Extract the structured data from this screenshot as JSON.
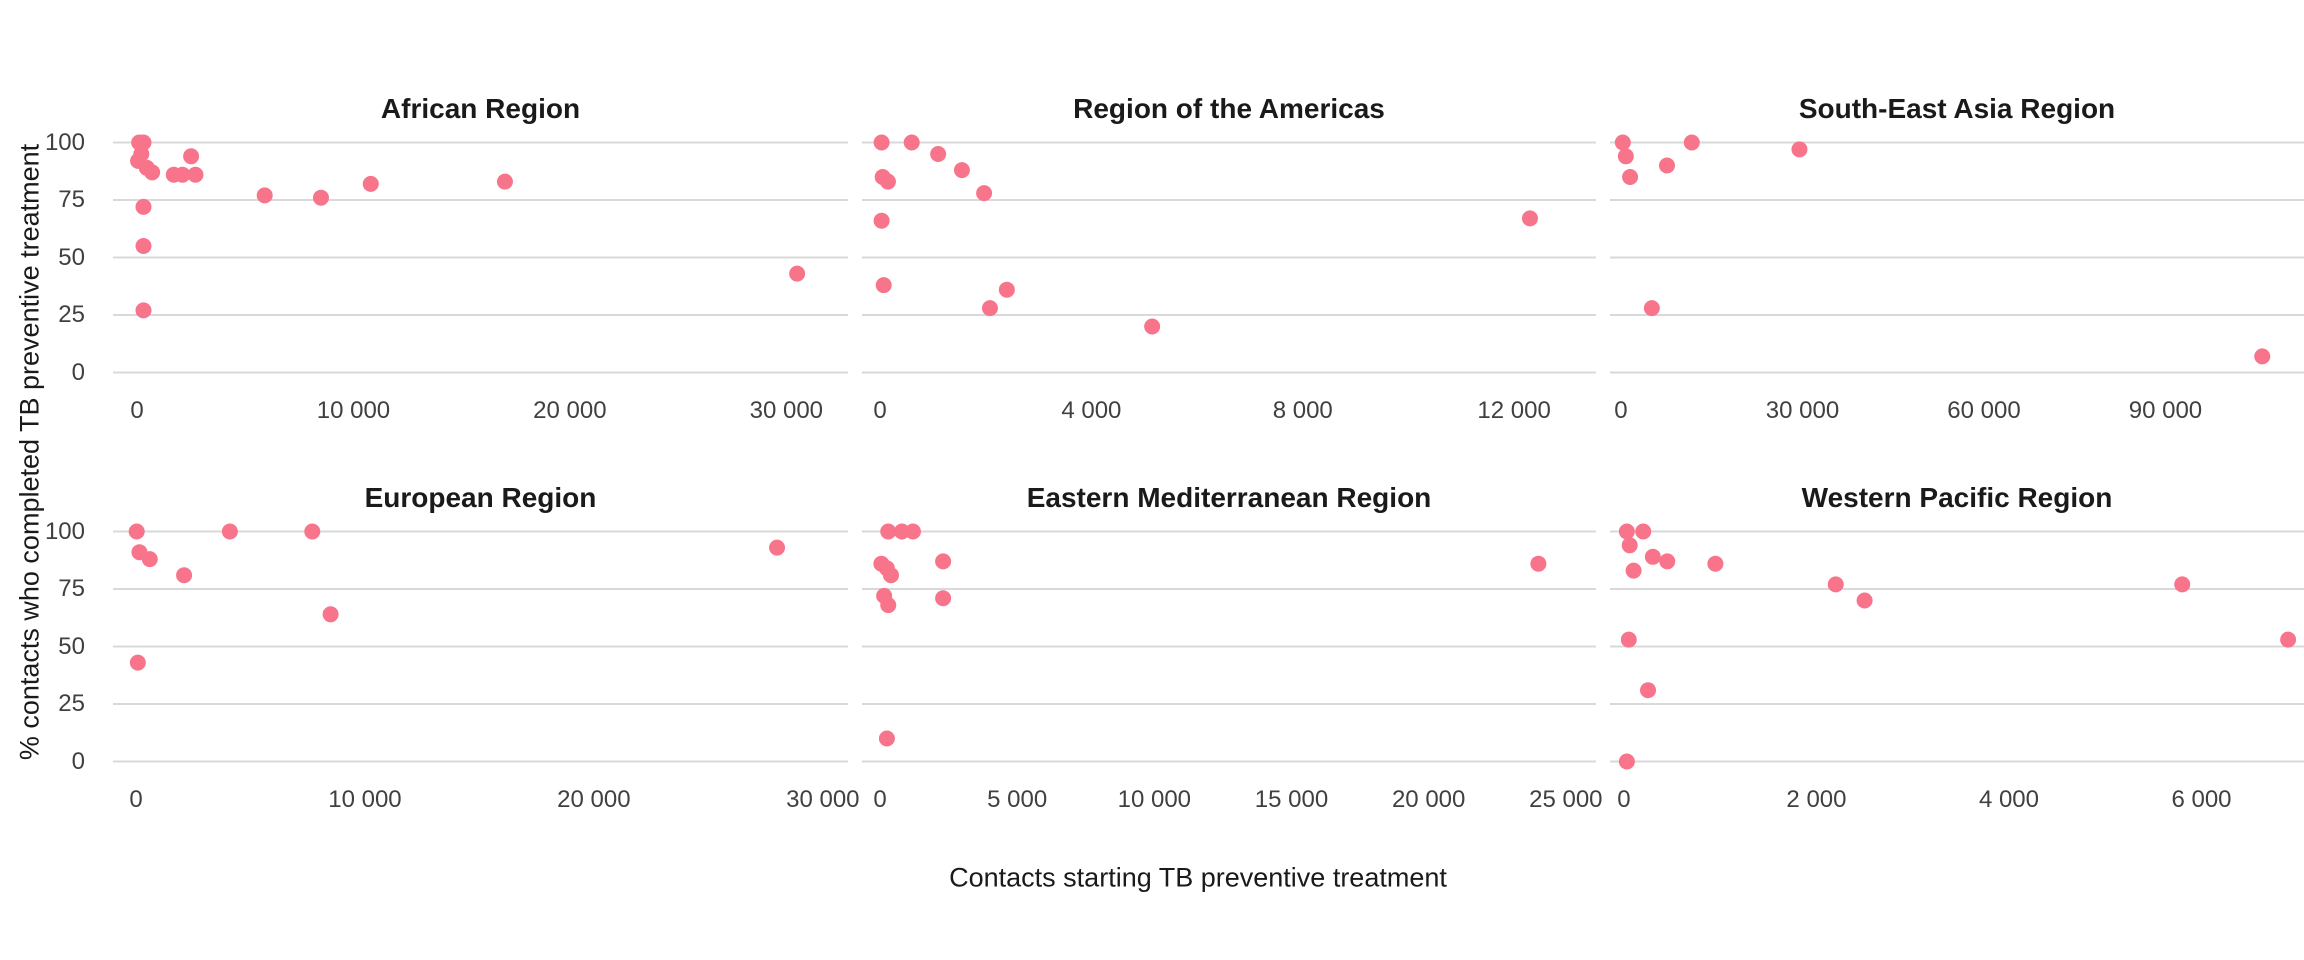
{
  "figure": {
    "background_color": "#FFFFFF",
    "point_color": "#F8748B",
    "gridline_color": "#D9D9D9",
    "title_color": "#1A1A1A",
    "tick_label_color": "#404040",
    "x_axis_label": "Contacts starting TB preventive treatment",
    "y_axis_label": "% contacts who completed TB preventive treatment"
  },
  "chart_data": {
    "type": "scatter",
    "layout": "2 rows x 3 columns facets",
    "xlabel": "Contacts starting TB preventive treatment",
    "ylabel": "% contacts who completed TB preventive treatment",
    "grid": "horizontal gridlines only",
    "legend_position": "none",
    "ylim": [
      0,
      100
    ],
    "y_ticks": [
      100,
      75,
      50,
      25,
      0
    ],
    "y_tick_labels": [
      "100",
      "75",
      "50",
      "25",
      "0"
    ],
    "facets": [
      {
        "title": "African Region",
        "x_ticks": [
          0,
          10000,
          20000,
          30000
        ],
        "x_tick_labels": [
          "0",
          "10 000",
          "20 000",
          "30 000"
        ],
        "xlim_edges": [
          -1109,
          32850
        ],
        "points": [
          [
            100,
            100
          ],
          [
            300,
            100
          ],
          [
            200,
            95
          ],
          [
            50,
            92
          ],
          [
            450,
            89
          ],
          [
            700,
            87
          ],
          [
            1700,
            86
          ],
          [
            2100,
            86
          ],
          [
            2500,
            94
          ],
          [
            2700,
            86
          ],
          [
            300,
            72
          ],
          [
            300,
            55
          ],
          [
            300,
            27
          ],
          [
            5900,
            77
          ],
          [
            8500,
            76
          ],
          [
            10800,
            82
          ],
          [
            17000,
            83
          ],
          [
            30500,
            43
          ]
        ]
      },
      {
        "title": "Region of the Americas",
        "x_ticks": [
          0,
          4000,
          8000,
          12000
        ],
        "x_tick_labels": [
          "0",
          "4 000",
          "8 000",
          "12 000"
        ],
        "xlim_edges": [
          -341,
          13550
        ],
        "points": [
          [
            30,
            100
          ],
          [
            600,
            100
          ],
          [
            1100,
            95
          ],
          [
            1550,
            88
          ],
          [
            1970,
            78
          ],
          [
            50,
            85
          ],
          [
            150,
            83
          ],
          [
            30,
            66
          ],
          [
            70,
            38
          ],
          [
            2080,
            28
          ],
          [
            2400,
            36
          ],
          [
            5150,
            20
          ],
          [
            12300,
            67
          ]
        ]
      },
      {
        "title": "South-East Asia Region",
        "x_ticks": [
          0,
          30000,
          60000,
          90000
        ],
        "x_tick_labels": [
          "0",
          "30 000",
          "60 000",
          "90 000"
        ],
        "xlim_edges": [
          -1818,
          112900
        ],
        "points": [
          [
            300,
            100
          ],
          [
            800,
            94
          ],
          [
            1500,
            85
          ],
          [
            7600,
            90
          ],
          [
            11700,
            100
          ],
          [
            29500,
            97
          ],
          [
            5100,
            28
          ],
          [
            106000,
            7
          ]
        ]
      },
      {
        "title": "European Region",
        "x_ticks": [
          0,
          10000,
          20000,
          30000
        ],
        "x_tick_labels": [
          "0",
          "10 000",
          "20 000",
          "30 000"
        ],
        "xlim_edges": [
          -1005,
          31100
        ],
        "points": [
          [
            30,
            100
          ],
          [
            150,
            91
          ],
          [
            600,
            88
          ],
          [
            2100,
            81
          ],
          [
            4100,
            100
          ],
          [
            7700,
            100
          ],
          [
            8500,
            64
          ],
          [
            80,
            43
          ],
          [
            28000,
            93
          ]
        ]
      },
      {
        "title": "Eastern Mediterranean Region",
        "x_ticks": [
          0,
          5000,
          10000,
          15000,
          20000,
          25000
        ],
        "x_tick_labels": [
          "0",
          "5 000",
          "10 000",
          "15 000",
          "20 000",
          "25 000"
        ],
        "xlim_edges": [
          -657,
          26100
        ],
        "points": [
          [
            300,
            100
          ],
          [
            800,
            100
          ],
          [
            1200,
            100
          ],
          [
            50,
            86
          ],
          [
            250,
            84
          ],
          [
            400,
            81
          ],
          [
            2300,
            87
          ],
          [
            150,
            72
          ],
          [
            300,
            68
          ],
          [
            2300,
            71
          ],
          [
            250,
            10
          ],
          [
            24000,
            86
          ]
        ]
      },
      {
        "title": "Western Pacific Region",
        "x_ticks": [
          0,
          2000,
          4000,
          6000
        ],
        "x_tick_labels": [
          "0",
          "2 000",
          "4 000",
          "6 000"
        ],
        "xlim_edges": [
          -145,
          7065
        ],
        "points": [
          [
            30,
            100
          ],
          [
            200,
            100
          ],
          [
            60,
            94
          ],
          [
            100,
            83
          ],
          [
            300,
            89
          ],
          [
            450,
            87
          ],
          [
            950,
            86
          ],
          [
            2200,
            77
          ],
          [
            2500,
            70
          ],
          [
            5800,
            77
          ],
          [
            50,
            53
          ],
          [
            6900,
            53
          ],
          [
            250,
            31
          ],
          [
            30,
            0
          ]
        ]
      }
    ]
  }
}
